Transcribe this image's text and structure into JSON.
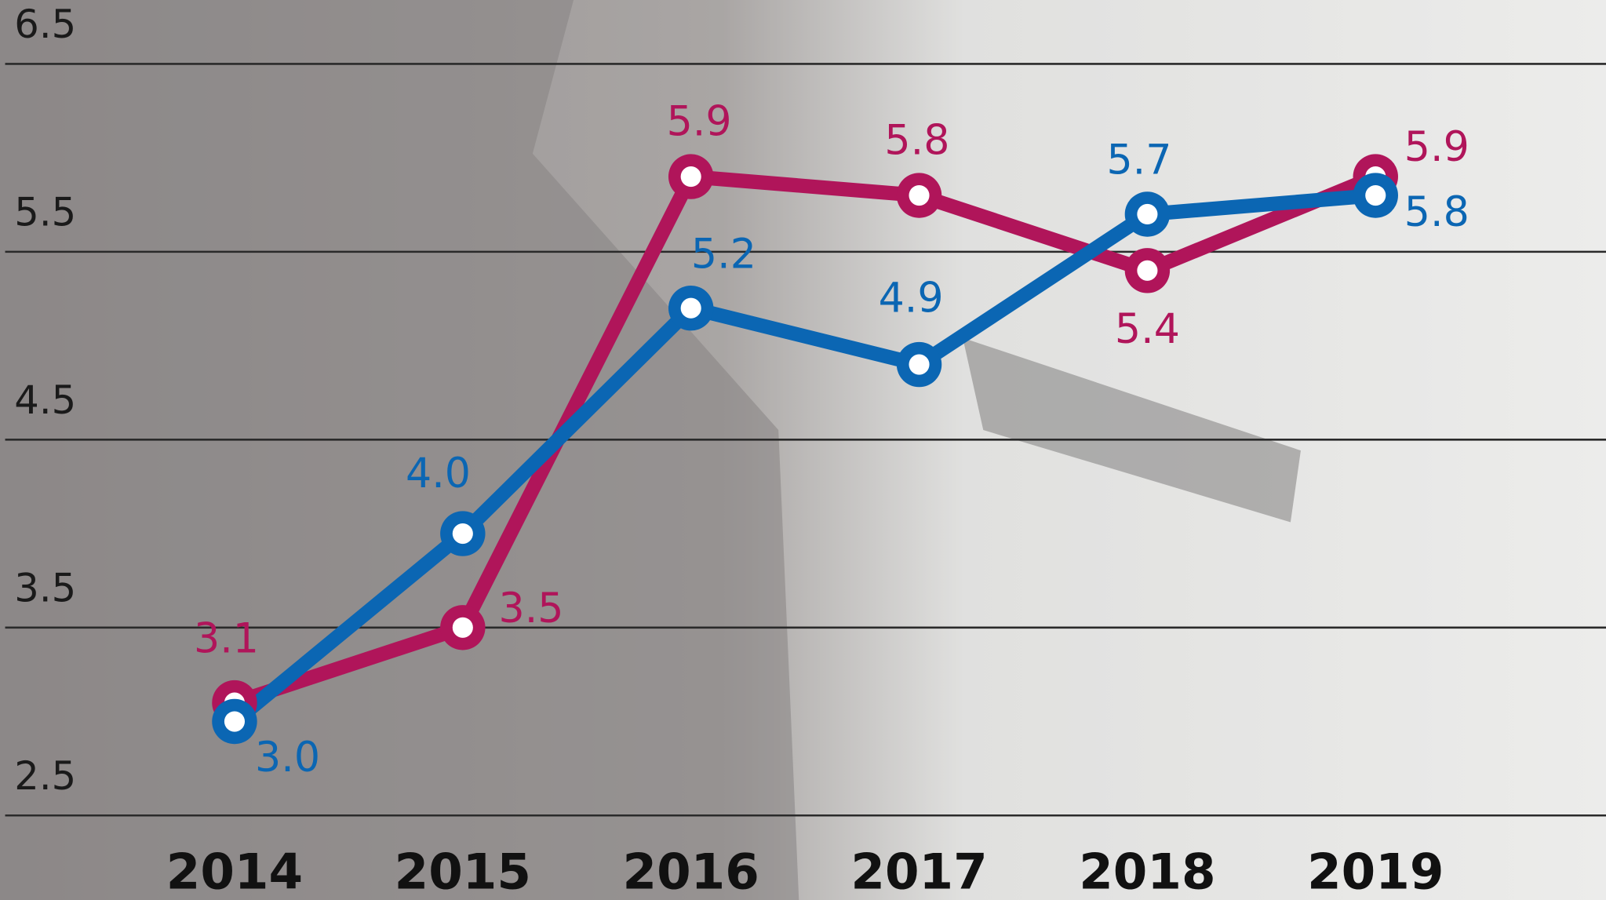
{
  "chart_data": {
    "type": "line",
    "categories": [
      "2014",
      "2015",
      "2016",
      "2017",
      "2018",
      "2019"
    ],
    "series": [
      {
        "color": "#b0155a",
        "values": [
          3.1,
          3.5,
          5.9,
          5.8,
          5.4,
          5.9
        ],
        "value_labels": [
          "3.1",
          "3.5",
          "5.9",
          "5.8",
          "5.4",
          "5.9"
        ]
      },
      {
        "color": "#0b66b3",
        "values": [
          3.0,
          4.0,
          5.2,
          4.9,
          5.7,
          5.8
        ],
        "value_labels": [
          "3.0",
          "4.0",
          "5.2",
          "4.9",
          "5.7",
          "5.8"
        ]
      }
    ],
    "ylim": [
      2.05,
      6.84
    ],
    "yticks": [
      2.5,
      3.5,
      4.5,
      5.5,
      6.5
    ],
    "grid": true
  }
}
